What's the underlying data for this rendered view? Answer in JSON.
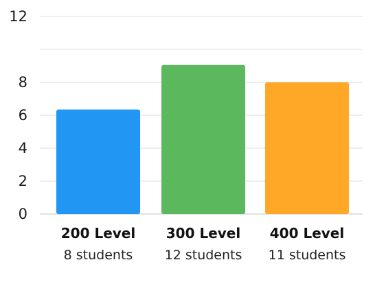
{
  "chart_data": {
    "type": "bar",
    "title": "",
    "xlabel": "",
    "ylabel": "",
    "ylim": [
      0,
      12
    ],
    "yticks": [
      0,
      2,
      4,
      6,
      8,
      10,
      12
    ],
    "ytick_labels": [
      "0",
      "2",
      "4",
      "6",
      "8",
      "",
      "12"
    ],
    "grid": true,
    "categories": [
      "200 Level",
      "300 Level",
      "400 Level"
    ],
    "sublabels": [
      "8 students",
      "12 students",
      "11 students"
    ],
    "values": [
      6.35,
      9.05,
      8.0
    ],
    "colors": [
      "#2196f3",
      "#5cb85c",
      "#ffa726"
    ]
  }
}
